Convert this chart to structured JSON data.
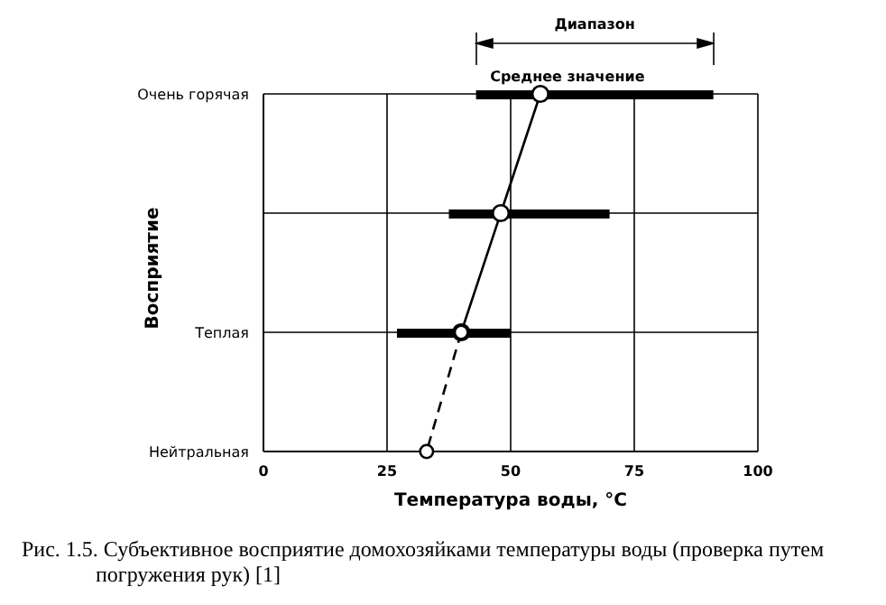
{
  "chart_data": {
    "type": "bar",
    "orientation": "horizontal",
    "xlabel": "Температура воды, °C",
    "ylabel": "Восприятие",
    "categories": [
      "Очень горячая",
      null,
      "Теплая",
      "Нейтральная"
    ],
    "series": [
      {
        "color": "#000000",
        "base": [
          43,
          37.5,
          27,
          null
        ],
        "values": [
          48,
          32.5,
          23,
          null
        ]
      },
      {
        "type": "line",
        "color": "#000000",
        "values": [
          56,
          48,
          40,
          null
        ],
        "marker": "circle",
        "line_style": "solid"
      },
      {
        "type": "line",
        "color": "#000000",
        "values": [
          null,
          null,
          40,
          33
        ],
        "marker": "circle",
        "line_style": "dashed"
      }
    ],
    "xlim": [
      0,
      100
    ],
    "xticks": [
      0,
      25,
      50,
      75,
      100
    ],
    "grid": true,
    "annotations": [
      "Диапазон",
      "Среднее значение",
      "Рис. 1.5. Субъективное восприятие домохозяйками температуры воды (проверка путем погружения рук) [1]"
    ]
  }
}
